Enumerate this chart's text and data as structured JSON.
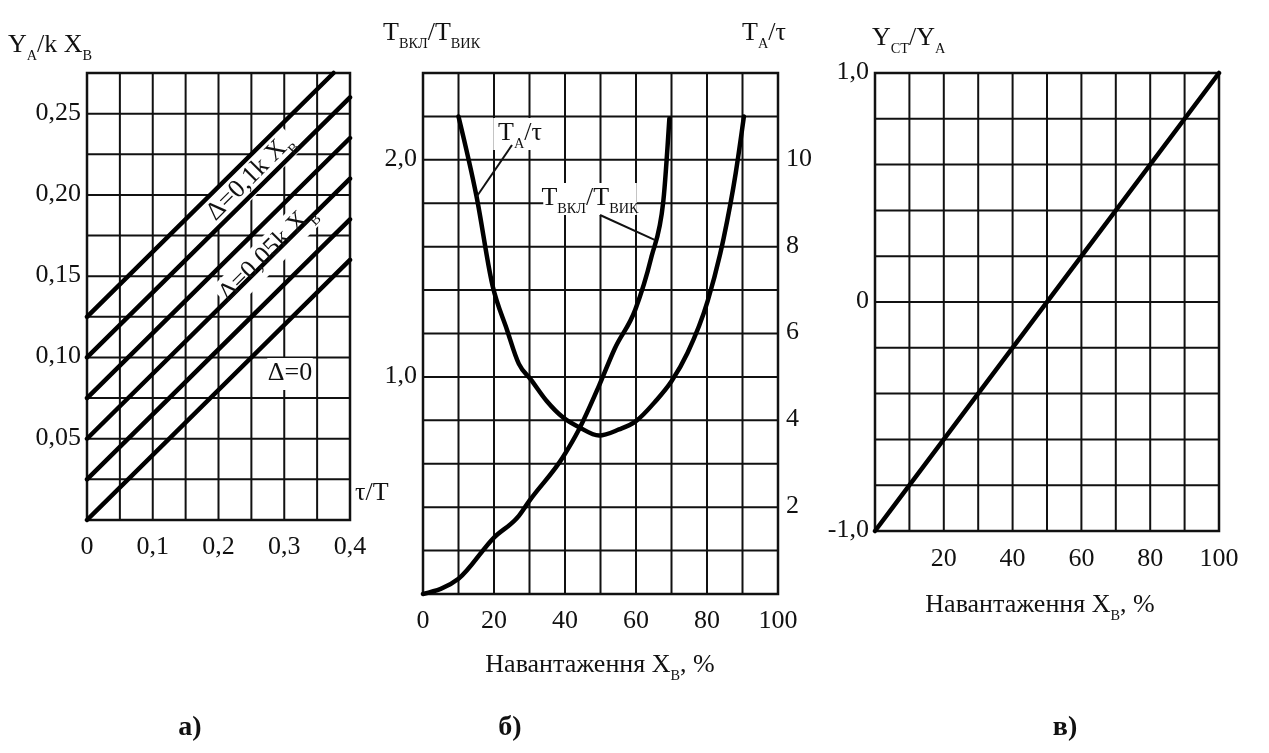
{
  "chart_data": [
    {
      "type": "line",
      "title": "а)",
      "xlabel": "τ/T",
      "ylabel": "Y$_{А}$/k X$_{В}$",
      "xlim": [
        0,
        0.4
      ],
      "ylim": [
        0,
        0.275
      ],
      "xticks": [
        0,
        {
          "value": 0.05,
          "label": null
        },
        {
          "value": 0.1,
          "label": "0,1"
        },
        {
          "value": 0.15,
          "label": null
        },
        {
          "value": 0.2,
          "label": "0,2"
        },
        {
          "value": 0.25,
          "label": null
        },
        {
          "value": 0.3,
          "label": "0,3"
        },
        {
          "value": 0.35,
          "label": null
        },
        {
          "value": 0.4,
          "label": "0,4"
        }
      ],
      "yticks": [
        {
          "value": 0,
          "label": null
        },
        {
          "value": 0.025,
          "label": null
        },
        {
          "value": 0.05,
          "label": "0,05"
        },
        {
          "value": 0.075,
          "label": null
        },
        {
          "value": 0.1,
          "label": "0,10"
        },
        {
          "value": 0.125,
          "label": null
        },
        {
          "value": 0.15,
          "label": "0,15"
        },
        {
          "value": 0.175,
          "label": null
        },
        {
          "value": 0.2,
          "label": "0,20"
        },
        {
          "value": 0.225,
          "label": null
        },
        {
          "value": 0.25,
          "label": "0,25"
        },
        {
          "value": 0.275,
          "label": null
        }
      ],
      "grid": true,
      "series": [
        {
          "color": "#000000",
          "x": [
            0,
            0.4
          ],
          "values": [
            0,
            0.16
          ]
        },
        {
          "color": "#000000",
          "x": [
            0,
            0.4
          ],
          "values": [
            0.025,
            0.185
          ]
        },
        {
          "color": "#000000",
          "x": [
            0,
            0.4
          ],
          "values": [
            0.05,
            0.21
          ]
        },
        {
          "color": "#000000",
          "x": [
            0,
            0.4
          ],
          "values": [
            0.075,
            0.235
          ]
        },
        {
          "color": "#000000",
          "x": [
            0,
            0.4
          ],
          "values": [
            0.1,
            0.26
          ]
        },
        {
          "color": "#000000",
          "x": [
            0,
            0.375
          ],
          "values": [
            0.125,
            0.275
          ]
        }
      ],
      "annotations": [
        "Δ=0,1k X$_{В}$",
        "Δ=0,05k X$_{В}$",
        "Δ=0"
      ]
    },
    {
      "type": "line",
      "title": "б)",
      "xlabel": "Навантаження X$_{В}$, %",
      "ylabel": "T$_{ВКЛ}$/T$_{ВИК}$",
      "y2label": "T$_{А}$/τ",
      "xlim": [
        0,
        100
      ],
      "ylim": [
        0,
        2.4
      ],
      "y2lim": [
        0,
        12
      ],
      "xticks": [
        0,
        {
          "value": 10,
          "label": null
        },
        20,
        {
          "value": 30,
          "label": null
        },
        40,
        {
          "value": 50,
          "label": null
        },
        60,
        {
          "value": 70,
          "label": null
        },
        80,
        {
          "value": 90,
          "label": null
        },
        100
      ],
      "yticks": [
        {
          "value": 0,
          "label": null
        },
        {
          "value": 0.2,
          "label": null
        },
        {
          "value": 0.4,
          "label": null
        },
        {
          "value": 0.6,
          "label": null
        },
        {
          "value": 0.8,
          "label": null
        },
        {
          "value": 1.0,
          "label": "1,0"
        },
        {
          "value": 1.2,
          "label": null
        },
        {
          "value": 1.4,
          "label": null
        },
        {
          "value": 1.6,
          "label": null
        },
        {
          "value": 1.8,
          "label": null
        },
        {
          "value": 2.0,
          "label": "2,0"
        },
        {
          "value": 2.2,
          "label": null
        },
        {
          "value": 2.4,
          "label": null
        }
      ],
      "y2ticks": [
        2,
        4,
        6,
        8,
        10
      ],
      "grid": true,
      "series": [
        {
          "color": "#000000",
          "axis": "y2",
          "x": [
            10,
            15.1,
            19.6,
            23.6,
            27,
            30.4,
            34.9,
            39.4,
            44,
            49.6,
            55.2,
            59.8,
            65.5,
            70,
            74.5,
            80.2,
            84.7,
            88.1,
            90.4
          ],
          "values": [
            11,
            9.15,
            7.1,
            6.1,
            5.3,
            4.94,
            4.44,
            4.07,
            3.84,
            3.65,
            3.79,
            3.97,
            4.44,
            4.9,
            5.55,
            6.75,
            8.2,
            9.7,
            11
          ]
        },
        {
          "color": "#000000",
          "x": [
            0,
            10,
            20,
            27,
            30,
            39.4,
            44,
            49.6,
            54,
            59.8,
            64.3,
            67.7,
            69.4
          ],
          "values": [
            0,
            0.07,
            0.26,
            0.36,
            0.43,
            0.63,
            0.76,
            0.96,
            1.13,
            1.31,
            1.55,
            1.81,
            2.19
          ]
        }
      ],
      "annotations": [
        {
          "text": "T$_{А}$/τ",
          "x": 15.1,
          "y": 1.83
        },
        {
          "text": "T$_{ВКЛ}$/T$_{ВИК}$",
          "x": 65.4,
          "y": 1.63
        }
      ]
    },
    {
      "type": "line",
      "title": "в)",
      "xlabel": "Навантаження X$_{В}$, %",
      "ylabel": "Y$_{СТ}$/Y$_{А}$",
      "xlim": [
        0,
        100
      ],
      "ylim": [
        -1,
        1
      ],
      "xticks": [
        {
          "value": 0,
          "label": null
        },
        {
          "value": 10,
          "label": null
        },
        20,
        {
          "value": 30,
          "label": null
        },
        40,
        {
          "value": 50,
          "label": null
        },
        60,
        {
          "value": 70,
          "label": null
        },
        80,
        {
          "value": 90,
          "label": null
        },
        100
      ],
      "yticks": [
        {
          "value": -1,
          "label": "-1,0"
        },
        {
          "value": -0.8,
          "label": null
        },
        {
          "value": -0.6,
          "label": null
        },
        {
          "value": -0.4,
          "label": null
        },
        {
          "value": -0.2,
          "label": null
        },
        0,
        {
          "value": 0.2,
          "label": null
        },
        {
          "value": 0.4,
          "label": null
        },
        {
          "value": 0.6,
          "label": null
        },
        {
          "value": 0.8,
          "label": null
        },
        {
          "value": 1,
          "label": "1,0"
        }
      ],
      "grid": true,
      "series": [
        {
          "color": "#000000",
          "x": [
            0,
            100
          ],
          "values": [
            -1,
            1
          ]
        }
      ]
    }
  ]
}
